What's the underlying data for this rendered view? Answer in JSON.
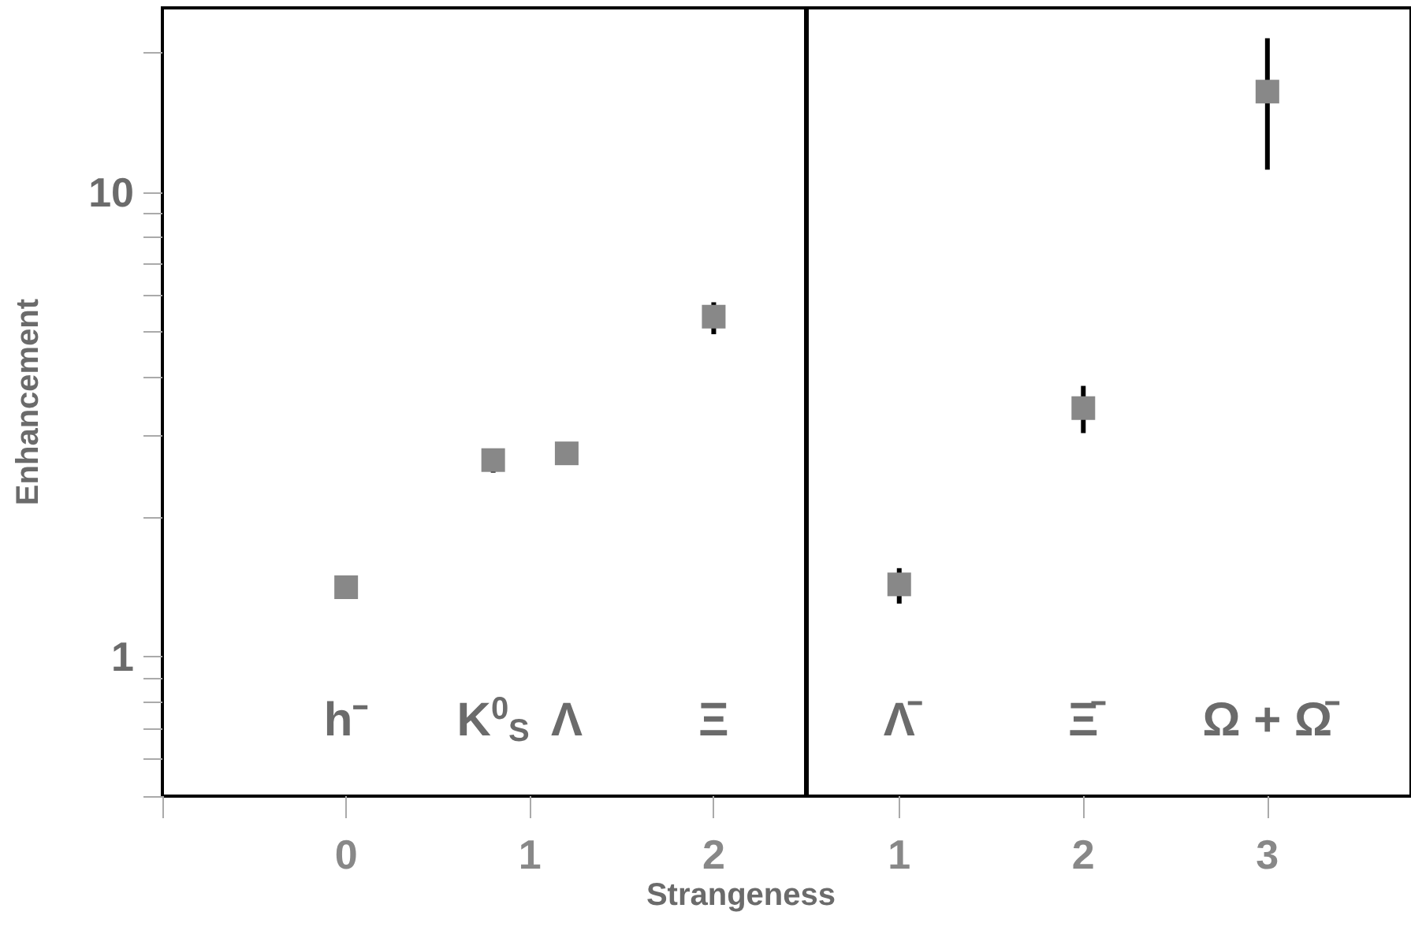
{
  "chart_data": [
    {
      "type": "scatter",
      "xlabel": "Strangeness",
      "ylabel": "Enhancement",
      "log": "y",
      "grid": false,
      "marker": "square",
      "tick_labels": "xy",
      "xlim": [
        -1,
        2.5
      ],
      "xticks": [
        {
          "value": -1,
          "label": null
        },
        0,
        1,
        2
      ],
      "ylim": [
        0.5,
        25
      ],
      "yticks": [
        {
          "value": 0.5,
          "label": null
        },
        {
          "value": 0.6,
          "label": null
        },
        {
          "value": 0.7,
          "label": null
        },
        {
          "value": 0.8,
          "label": null
        },
        {
          "value": 0.9,
          "label": null
        },
        1,
        {
          "value": 2,
          "label": null
        },
        {
          "value": 3,
          "label": null
        },
        {
          "value": 4,
          "label": null
        },
        {
          "value": 5,
          "label": null
        },
        {
          "value": 6,
          "label": null
        },
        {
          "value": 7,
          "label": null
        },
        {
          "value": 8,
          "label": null
        },
        {
          "value": 9,
          "label": null
        },
        10,
        {
          "value": 20,
          "label": null
        }
      ],
      "series": [
        {
          "color": "#888888",
          "x": [
            0,
            0.8,
            1.2,
            2
          ],
          "values": [
            1.41,
            2.65,
            2.74,
            5.4
          ],
          "errors": [
            null,
            [
              2.49,
              2.8
            ],
            null,
            [
              4.95,
              5.8
            ]
          ]
        }
      ],
      "annotations": [
        "h⁻",
        "K$^{0}$$_{S}$",
        "Λ",
        "Ξ"
      ]
    },
    {
      "type": "scatter",
      "log": "y",
      "grid": false,
      "marker": "square",
      "tick_labels": "x",
      "xlim": [
        0.5,
        3.78
      ],
      "xticks": [
        1,
        2,
        3
      ],
      "ylim": [
        0.5,
        25
      ],
      "series": [
        {
          "color": "#888888",
          "x": [
            1,
            2,
            3
          ],
          "values": [
            1.43,
            3.43,
            16.5
          ],
          "errors": [
            [
              1.3,
              1.55
            ],
            [
              3.03,
              3.83
            ],
            [
              11.2,
              21.5
            ]
          ]
        }
      ],
      "annotations": [
        "Λ̄",
        "Ξ̄",
        "Ω + Ω̄"
      ]
    }
  ]
}
